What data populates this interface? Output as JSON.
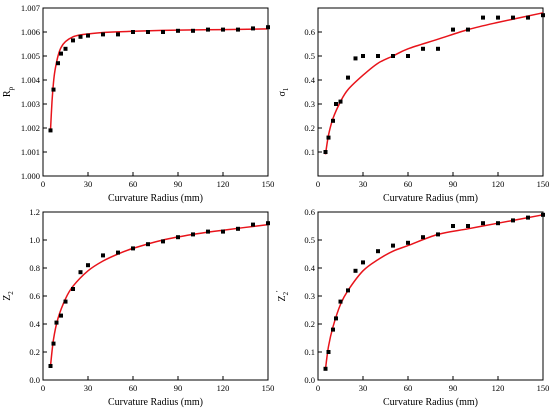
{
  "style": {
    "marker_color": "#000000",
    "fit_color": "#e8141b",
    "axis_color": "#000000"
  },
  "chart_data": [
    {
      "type": "scatter",
      "ylabel": "R",
      "ylabel_sub": "p",
      "xlabel": "Curvature Radius (mm)",
      "xlim": [
        0,
        150
      ],
      "ylim": [
        1.0,
        1.007
      ],
      "xticks": [
        "0",
        "30",
        "60",
        "90",
        "120",
        "150"
      ],
      "yticks": [
        "1.000",
        "1.001",
        "1.002",
        "1.003",
        "1.004",
        "1.005",
        "1.006",
        "1.007"
      ],
      "series": [
        {
          "kind": "points",
          "x": [
            5,
            7,
            10,
            12,
            15,
            20,
            25,
            30,
            40,
            50,
            60,
            70,
            80,
            90,
            100,
            110,
            120,
            130,
            140,
            150
          ],
          "y": [
            1.0019,
            1.0036,
            1.0047,
            1.0051,
            1.0053,
            1.00565,
            1.0058,
            1.00585,
            1.0059,
            1.0059,
            1.006,
            1.006,
            1.006,
            1.00605,
            1.00605,
            1.0061,
            1.0061,
            1.0061,
            1.00615,
            1.0062
          ]
        },
        {
          "kind": "fit",
          "x": [
            5,
            6,
            7,
            8,
            10,
            12,
            15,
            20,
            25,
            30,
            40,
            60,
            90,
            120,
            150
          ],
          "y": [
            1.0019,
            1.0031,
            1.0039,
            1.0044,
            1.005,
            1.00535,
            1.0056,
            1.0058,
            1.00588,
            1.00592,
            1.00598,
            1.00603,
            1.00608,
            1.0061,
            1.00613
          ]
        }
      ]
    },
    {
      "type": "scatter",
      "ylabel": "σ",
      "ylabel_sub": "1",
      "xlabel": "Curvature Radius (mm)",
      "xlim": [
        0,
        150
      ],
      "ylim": [
        0,
        0.7
      ],
      "xticks": [
        "0",
        "30",
        "60",
        "90",
        "120",
        "150"
      ],
      "yticks": [
        "0.1",
        "0.2",
        "0.3",
        "0.4",
        "0.5",
        "0.6"
      ],
      "ytick_values": [
        0.1,
        0.2,
        0.3,
        0.4,
        0.5,
        0.6
      ],
      "series": [
        {
          "kind": "points",
          "x": [
            5,
            7,
            10,
            12,
            15,
            20,
            25,
            30,
            40,
            50,
            60,
            70,
            80,
            90,
            100,
            110,
            120,
            130,
            140,
            150
          ],
          "y": [
            0.1,
            0.16,
            0.23,
            0.3,
            0.31,
            0.41,
            0.49,
            0.5,
            0.5,
            0.5,
            0.5,
            0.53,
            0.53,
            0.61,
            0.61,
            0.66,
            0.66,
            0.66,
            0.66,
            0.67
          ]
        },
        {
          "kind": "fit",
          "x": [
            5,
            7,
            10,
            15,
            20,
            30,
            40,
            50,
            60,
            80,
            100,
            120,
            150
          ],
          "y": [
            0.09,
            0.17,
            0.24,
            0.31,
            0.36,
            0.42,
            0.47,
            0.5,
            0.53,
            0.57,
            0.61,
            0.64,
            0.68
          ]
        }
      ]
    },
    {
      "type": "scatter",
      "ylabel": "Z",
      "ylabel_sub": "2",
      "xlabel": "Curvature Radius (mm)",
      "xlim": [
        0,
        150
      ],
      "ylim": [
        0,
        1.2
      ],
      "xticks": [
        "0",
        "30",
        "60",
        "90",
        "120",
        "150"
      ],
      "yticks": [
        "0.0",
        "0.2",
        "0.4",
        "0.6",
        "0.8",
        "1.0",
        "1.2"
      ],
      "ytick_values": [
        0,
        0.2,
        0.4,
        0.6,
        0.8,
        1.0,
        1.2
      ],
      "series": [
        {
          "kind": "points",
          "x": [
            5,
            7,
            9,
            12,
            15,
            20,
            25,
            30,
            40,
            50,
            60,
            70,
            80,
            90,
            100,
            110,
            120,
            130,
            140,
            150
          ],
          "y": [
            0.1,
            0.26,
            0.41,
            0.46,
            0.56,
            0.65,
            0.77,
            0.82,
            0.89,
            0.91,
            0.94,
            0.97,
            0.99,
            1.02,
            1.04,
            1.06,
            1.06,
            1.08,
            1.11,
            1.12
          ]
        },
        {
          "kind": "fit",
          "x": [
            5,
            7,
            10,
            15,
            20,
            30,
            40,
            50,
            60,
            80,
            100,
            120,
            150
          ],
          "y": [
            0.1,
            0.29,
            0.44,
            0.58,
            0.67,
            0.78,
            0.85,
            0.9,
            0.94,
            1.0,
            1.04,
            1.07,
            1.11
          ]
        }
      ]
    },
    {
      "type": "scatter",
      "ylabel": "Z",
      "ylabel_sub": "2",
      "ylabel_prime": "'",
      "xlabel": "Curvature Radius (mm)",
      "xlim": [
        0,
        150
      ],
      "ylim": [
        0,
        0.6
      ],
      "xticks": [
        "0",
        "30",
        "60",
        "90",
        "120",
        "150"
      ],
      "yticks": [
        "0.0",
        "0.1",
        "0.2",
        "0.3",
        "0.4",
        "0.5",
        "0.6"
      ],
      "ytick_values": [
        0,
        0.1,
        0.2,
        0.3,
        0.4,
        0.5,
        0.6
      ],
      "series": [
        {
          "kind": "points",
          "x": [
            5,
            7,
            10,
            12,
            15,
            20,
            25,
            30,
            40,
            50,
            60,
            70,
            80,
            90,
            100,
            110,
            120,
            130,
            140,
            150
          ],
          "y": [
            0.04,
            0.1,
            0.18,
            0.22,
            0.28,
            0.32,
            0.39,
            0.42,
            0.46,
            0.48,
            0.49,
            0.51,
            0.52,
            0.55,
            0.55,
            0.56,
            0.56,
            0.57,
            0.58,
            0.59
          ]
        },
        {
          "kind": "fit",
          "x": [
            5,
            7,
            10,
            15,
            20,
            30,
            40,
            50,
            60,
            80,
            100,
            120,
            150
          ],
          "y": [
            0.04,
            0.12,
            0.19,
            0.27,
            0.32,
            0.39,
            0.43,
            0.46,
            0.48,
            0.52,
            0.54,
            0.56,
            0.59
          ]
        }
      ]
    }
  ]
}
